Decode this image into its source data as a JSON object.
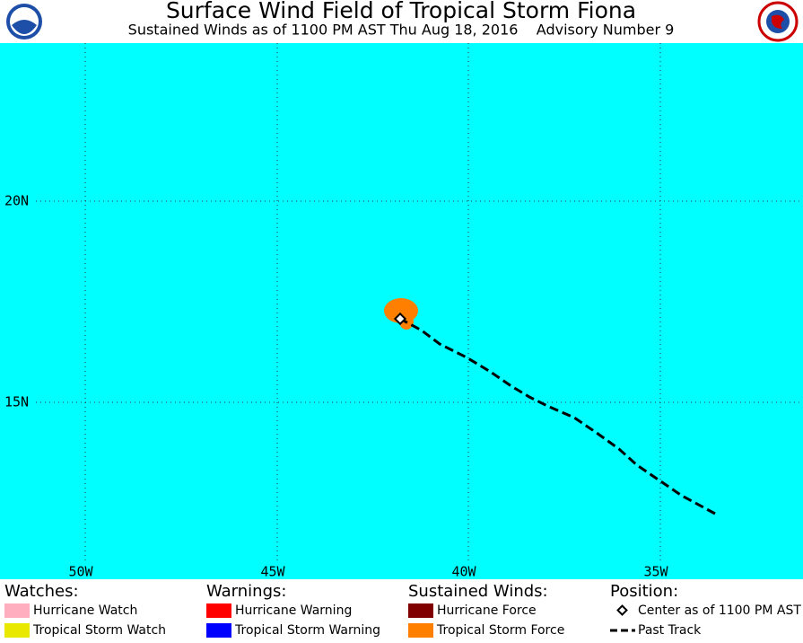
{
  "header": {
    "title": "Surface Wind Field of Tropical Storm Fiona",
    "subtitle": "Sustained Winds as of 1100 PM AST Thu Aug 18, 2016    Advisory Number 9"
  },
  "map": {
    "longitude_labels": [
      "50W",
      "45W",
      "40W",
      "35W"
    ],
    "latitude_labels": [
      "20N",
      "15N"
    ]
  },
  "legend": {
    "watches": {
      "heading": "Watches:",
      "items": [
        "Hurricane Watch",
        "Tropical Storm Watch"
      ]
    },
    "warnings": {
      "heading": "Warnings:",
      "items": [
        "Hurricane Warning",
        "Tropical Storm Warning"
      ]
    },
    "winds": {
      "heading": "Sustained Winds:",
      "items": [
        "Hurricane Force",
        "Tropical Storm Force"
      ]
    },
    "position": {
      "heading": "Position:",
      "items": [
        "Center as of 1100 PM AST",
        "Past Track"
      ]
    }
  }
}
